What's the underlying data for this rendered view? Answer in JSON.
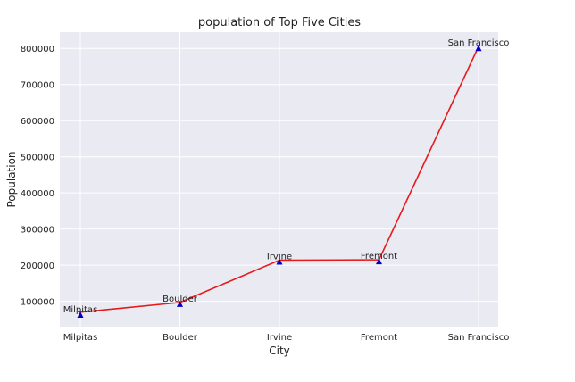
{
  "chart_data": {
    "type": "line",
    "title": "population of Top Five Cities",
    "xlabel": "City",
    "ylabel": "Population",
    "categories": [
      "Milpitas",
      "Boulder",
      "Irvine",
      "Fremont",
      "San Francisco"
    ],
    "series": [
      {
        "values": [
          70000,
          97000,
          214000,
          215000,
          805000
        ]
      }
    ],
    "markers": [
      62000,
      92000,
      209000,
      210000,
      800000
    ],
    "point_labels": [
      "Milpitas",
      "Boulder",
      "Irvine",
      "Fremont",
      "San Francisco"
    ],
    "ylim": [
      30000,
      845000
    ],
    "yticks": [
      100000,
      200000,
      300000,
      400000,
      500000,
      600000,
      700000,
      800000
    ],
    "ytick_labels": [
      "100000",
      "200000",
      "300000",
      "400000",
      "500000",
      "600000",
      "700000",
      "800000"
    ],
    "grid": true,
    "style": "seaborn-darkgrid",
    "colors": {
      "background": "#eaeaf2",
      "grid": "#ffffff",
      "line": "#e8191b",
      "marker": "#0000cc"
    }
  }
}
